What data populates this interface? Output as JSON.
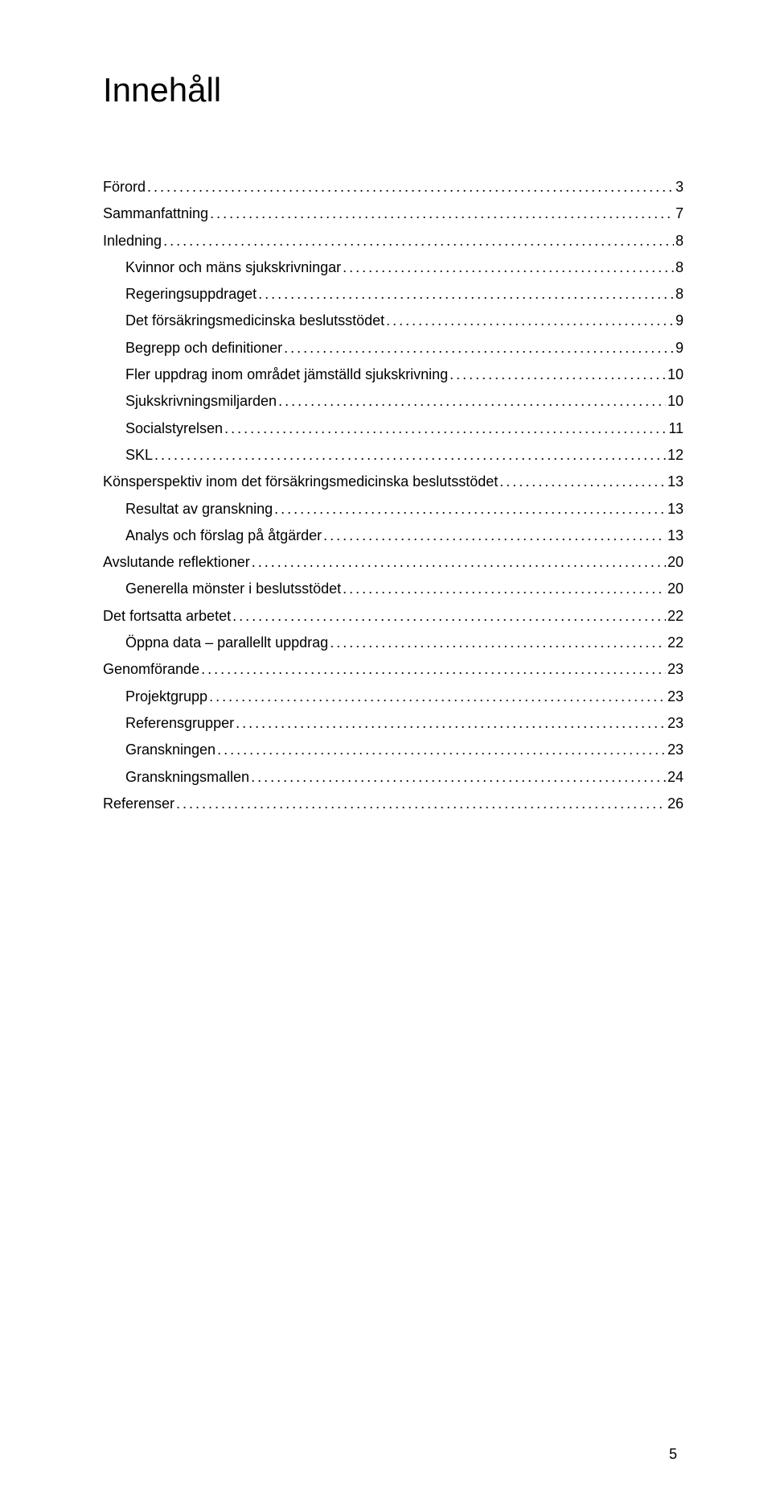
{
  "title": "Innehåll",
  "page_number": "5",
  "toc": [
    {
      "label": "Förord",
      "page": "3",
      "indent": 0
    },
    {
      "label": "Sammanfattning",
      "page": "7",
      "indent": 0
    },
    {
      "label": "Inledning",
      "page": "8",
      "indent": 0
    },
    {
      "label": "Kvinnor och mäns sjukskrivningar",
      "page": "8",
      "indent": 1
    },
    {
      "label": "Regeringsuppdraget",
      "page": "8",
      "indent": 1
    },
    {
      "label": "Det försäkringsmedicinska beslutsstödet",
      "page": "9",
      "indent": 1
    },
    {
      "label": "Begrepp och definitioner",
      "page": "9",
      "indent": 1
    },
    {
      "label": "Fler uppdrag inom området jämställd sjukskrivning",
      "page": "10",
      "indent": 1
    },
    {
      "label": "Sjukskrivningsmiljarden",
      "page": "10",
      "indent": 1
    },
    {
      "label": "Socialstyrelsen",
      "page": "11",
      "indent": 1
    },
    {
      "label": "SKL",
      "page": "12",
      "indent": 1
    },
    {
      "label": "Könsperspektiv inom det försäkringsmedicinska beslutsstödet",
      "page": "13",
      "indent": 0
    },
    {
      "label": "Resultat av granskning",
      "page": "13",
      "indent": 1
    },
    {
      "label": "Analys och förslag på åtgärder",
      "page": "13",
      "indent": 1
    },
    {
      "label": "Avslutande reflektioner",
      "page": "20",
      "indent": 0
    },
    {
      "label": "Generella mönster i beslutsstödet",
      "page": "20",
      "indent": 1
    },
    {
      "label": "Det fortsatta arbetet",
      "page": "22",
      "indent": 0
    },
    {
      "label": "Öppna data – parallellt uppdrag",
      "page": "22",
      "indent": 1
    },
    {
      "label": "Genomförande",
      "page": "23",
      "indent": 0
    },
    {
      "label": "Projektgrupp",
      "page": "23",
      "indent": 1
    },
    {
      "label": "Referensgrupper",
      "page": "23",
      "indent": 1
    },
    {
      "label": "Granskningen",
      "page": "23",
      "indent": 1
    },
    {
      "label": "Granskningsmallen",
      "page": "24",
      "indent": 1
    },
    {
      "label": "Referenser",
      "page": "26",
      "indent": 0
    }
  ]
}
